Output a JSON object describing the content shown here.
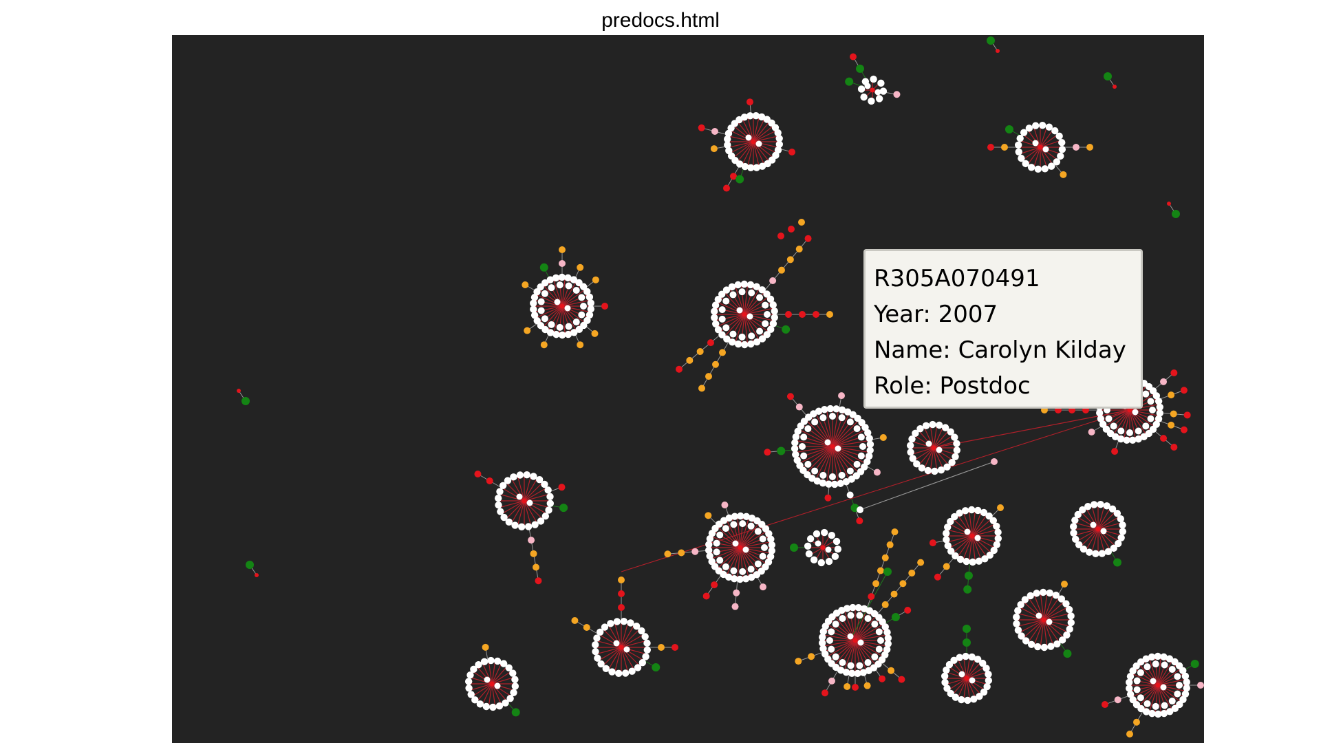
{
  "window": {
    "title": "predocs.html"
  },
  "tooltip": {
    "id": "R305A070491",
    "year": "Year: 2007",
    "name": "Name: Carolyn Kilday",
    "role": "Role: Postdoc"
  },
  "colors": {
    "background": "#232323",
    "hub": "#e8141c",
    "grant": "#ffffff",
    "pink": "#f7b6c6",
    "orange": "#f5a623",
    "red": "#e4141c",
    "green": "#148414",
    "edge_red": "#b3202a",
    "edge_grey": "#9a9a9a",
    "edge_green": "#1f7a1f"
  },
  "legend_semantics": [
    "hub",
    "grant",
    "pink",
    "orange",
    "red",
    "green"
  ]
}
